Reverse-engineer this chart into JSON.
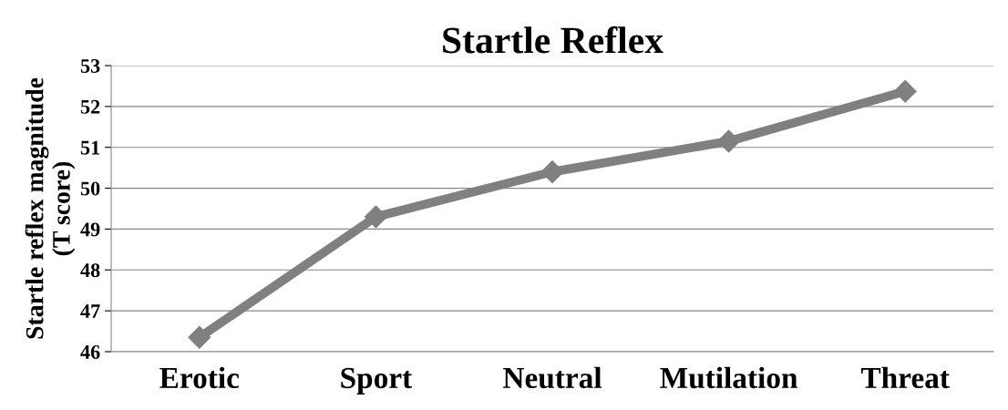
{
  "chart_data": {
    "type": "line",
    "title": "Startle Reflex",
    "ylabel": "Startle reflex magnitude\n(T score)",
    "categories": [
      "Erotic",
      "Sport",
      "Neutral",
      "Mutilation",
      "Threat"
    ],
    "series": [
      {
        "color": "#808080",
        "values": [
          46.35,
          49.3,
          50.4,
          51.15,
          52.37
        ]
      }
    ],
    "ylim": [
      46,
      53
    ],
    "yticks": [
      46,
      47,
      48,
      49,
      50,
      51,
      52,
      53
    ],
    "grid": "y",
    "marker": "diamond",
    "line_style": "solid",
    "legend": false
  }
}
